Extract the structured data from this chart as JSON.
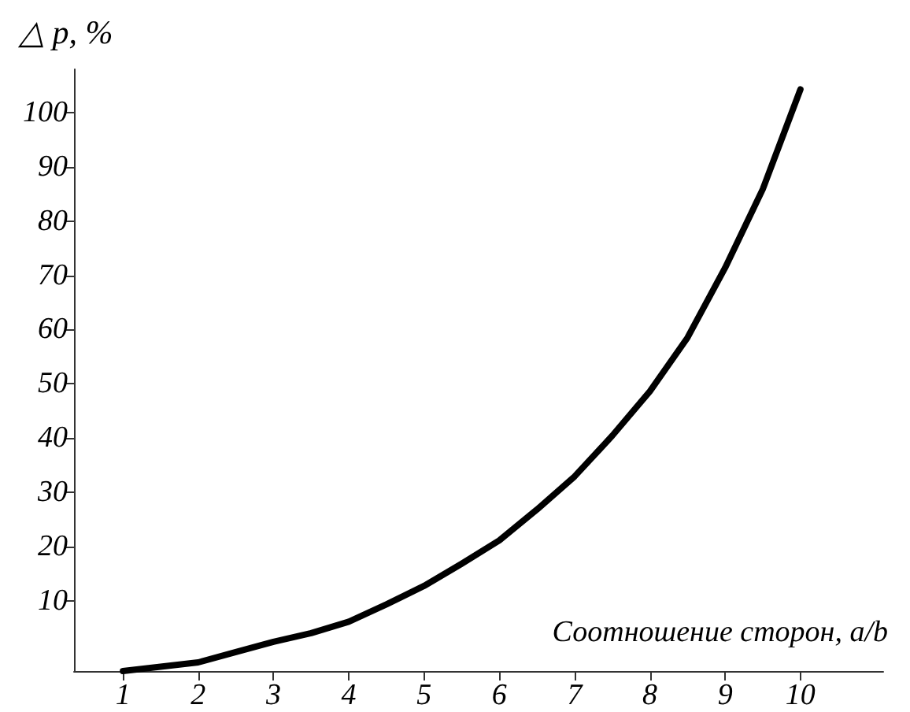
{
  "chart_data": {
    "type": "line",
    "xlabel": "Соотношение сторон, a/b",
    "ylabel": "△ p, %",
    "x": [
      1,
      1.5,
      2,
      2.5,
      3,
      3.5,
      4,
      4.5,
      5,
      5.5,
      6,
      6.5,
      7,
      7.5,
      8,
      8.5,
      9,
      9.5,
      10
    ],
    "series": [
      {
        "color": "#000000",
        "values": [
          -3,
          -2.2,
          -1.4,
          0.5,
          2.4,
          4,
          6.1,
          9.3,
          12.7,
          16.8,
          21.1,
          26.8,
          32.9,
          40.4,
          48.6,
          58.5,
          71.4,
          85.9,
          104.3
        ]
      }
    ],
    "xlim": [
      0.35,
      11.1
    ],
    "ylim": [
      -3,
      108
    ],
    "xticks": [
      1,
      2,
      3,
      4,
      5,
      6,
      7,
      8,
      9,
      10
    ],
    "yticks": [
      10,
      20,
      30,
      40,
      50,
      60,
      70,
      80,
      90,
      100
    ],
    "marker": "none",
    "line_style": "solid"
  }
}
